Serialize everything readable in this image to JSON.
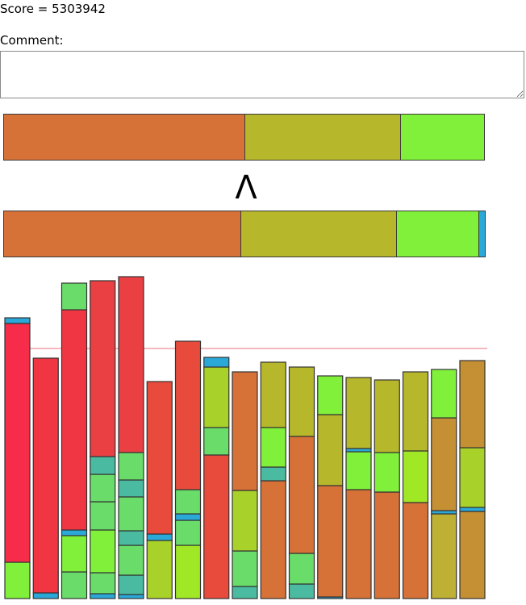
{
  "score_label": "Score = 5303942",
  "comment": {
    "label": "Comment:",
    "value": ""
  },
  "comparison_symbol": "Λ",
  "colors": {
    "orange": "#d67138",
    "olive": "#b7b72b",
    "lime": "#80f03a",
    "blue": "#2aa8d8",
    "red": "#f72c4a",
    "red2": "#f03643",
    "red3": "#ea3f43",
    "tomato": "#e84b3c",
    "green": "#69dc69",
    "teal": "#4abba0",
    "limeyellow": "#a0e826",
    "yellowgreen": "#a8d22a",
    "ochre": "#c58f33",
    "gold": "#beaf35",
    "outline": "#333333",
    "threshold": "#f4a0a8"
  },
  "top_bar": [
    {
      "name": "orange",
      "fraction": 0.5025,
      "color": "#d67138"
    },
    {
      "name": "olive",
      "fraction": 0.3233,
      "color": "#b7b72b"
    },
    {
      "name": "lime",
      "fraction": 0.1742,
      "color": "#80f03a"
    }
  ],
  "bottom_bar": [
    {
      "name": "orange",
      "fraction": 0.4917,
      "color": "#d67138"
    },
    {
      "name": "olive",
      "fraction": 0.3217,
      "color": "#b7b72b"
    },
    {
      "name": "lime",
      "fraction": 0.17,
      "color": "#80f03a"
    },
    {
      "name": "blue",
      "fraction": 0.0133,
      "color": "#2aa8d8"
    }
  ],
  "threshold_value": 310,
  "columns": [
    [
      {
        "v": 45,
        "c": "#80f03a"
      },
      {
        "v": 296,
        "c": "#f72c4a"
      },
      {
        "v": 7,
        "c": "#2aa8d8"
      }
    ],
    [
      {
        "v": 7,
        "c": "#2aa8d8"
      },
      {
        "v": 291,
        "c": "#f03643"
      }
    ],
    [
      {
        "v": 33,
        "c": "#69dc69"
      },
      {
        "v": 45,
        "c": "#80f03a"
      },
      {
        "v": 7,
        "c": "#2aa8d8"
      },
      {
        "v": 273,
        "c": "#f03643"
      },
      {
        "v": 33,
        "c": "#69dc69"
      }
    ],
    [
      {
        "v": 6,
        "c": "#2aa8d8"
      },
      {
        "v": 26,
        "c": "#69dc69"
      },
      {
        "v": 53,
        "c": "#80f03a"
      },
      {
        "v": 35,
        "c": "#69dc69"
      },
      {
        "v": 34,
        "c": "#69dc69"
      },
      {
        "v": 22,
        "c": "#4abba0"
      },
      {
        "v": 218,
        "c": "#ea3f43"
      }
    ],
    [
      {
        "v": 5,
        "c": "#2aa8d8"
      },
      {
        "v": 24,
        "c": "#4abba0"
      },
      {
        "v": 37,
        "c": "#69dc69"
      },
      {
        "v": 18,
        "c": "#4abba0"
      },
      {
        "v": 42,
        "c": "#69dc69"
      },
      {
        "v": 21,
        "c": "#4abba0"
      },
      {
        "v": 34,
        "c": "#69dc69"
      },
      {
        "v": 218,
        "c": "#ea3f43"
      }
    ],
    [
      {
        "v": 72,
        "c": "#a8d22a"
      },
      {
        "v": 8,
        "c": "#2aa8d8"
      },
      {
        "v": 189,
        "c": "#e84b3c"
      }
    ],
    [
      {
        "v": 66,
        "c": "#a0e826"
      },
      {
        "v": 31,
        "c": "#69dc69"
      },
      {
        "v": 8,
        "c": "#2aa8d8"
      },
      {
        "v": 30,
        "c": "#69dc69"
      },
      {
        "v": 184,
        "c": "#e84b3c"
      }
    ],
    [
      {
        "v": 178,
        "c": "#e84b3c"
      },
      {
        "v": 34,
        "c": "#69dc69"
      },
      {
        "v": 75,
        "c": "#a8d22a"
      },
      {
        "v": 12,
        "c": "#2aa8d8"
      }
    ],
    [
      {
        "v": 15,
        "c": "#4abba0"
      },
      {
        "v": 44,
        "c": "#69dc69"
      },
      {
        "v": 75,
        "c": "#a8d22a"
      },
      {
        "v": 147,
        "c": "#d67138"
      }
    ],
    [
      {
        "v": 146,
        "c": "#d67138"
      },
      {
        "v": 17,
        "c": "#4abba0"
      },
      {
        "v": 49,
        "c": "#80f03a"
      },
      {
        "v": 81,
        "c": "#b7b72b"
      }
    ],
    [
      {
        "v": 18,
        "c": "#4abba0"
      },
      {
        "v": 38,
        "c": "#69dc69"
      },
      {
        "v": 145,
        "c": "#d67138"
      },
      {
        "v": 86,
        "c": "#b7b72b"
      }
    ],
    [
      {
        "v": 2,
        "c": "#2aa8d8"
      },
      {
        "v": 138,
        "c": "#d67138"
      },
      {
        "v": 88,
        "c": "#b7b72b"
      },
      {
        "v": 48,
        "c": "#80f03a"
      }
    ],
    [
      {
        "v": 135,
        "c": "#d67138"
      },
      {
        "v": 47,
        "c": "#80f03a"
      },
      {
        "v": 4,
        "c": "#2aa8d8"
      },
      {
        "v": 88,
        "c": "#b7b72b"
      }
    ],
    [
      {
        "v": 132,
        "c": "#d67138"
      },
      {
        "v": 49,
        "c": "#80f03a"
      },
      {
        "v": 90,
        "c": "#b7b72b"
      }
    ],
    [
      {
        "v": 119,
        "c": "#d67138"
      },
      {
        "v": 64,
        "c": "#a0e826"
      },
      {
        "v": 98,
        "c": "#b7b72b"
      }
    ],
    [
      {
        "v": 105,
        "c": "#beaf35"
      },
      {
        "v": 4,
        "c": "#2aa8d8"
      },
      {
        "v": 115,
        "c": "#c58f33"
      },
      {
        "v": 60,
        "c": "#80f03a"
      }
    ],
    [
      {
        "v": 108,
        "c": "#c58f33"
      },
      {
        "v": 5,
        "c": "#2aa8d8"
      },
      {
        "v": 74,
        "c": "#a8d22a"
      },
      {
        "v": 108,
        "c": "#c58f33"
      }
    ]
  ]
}
